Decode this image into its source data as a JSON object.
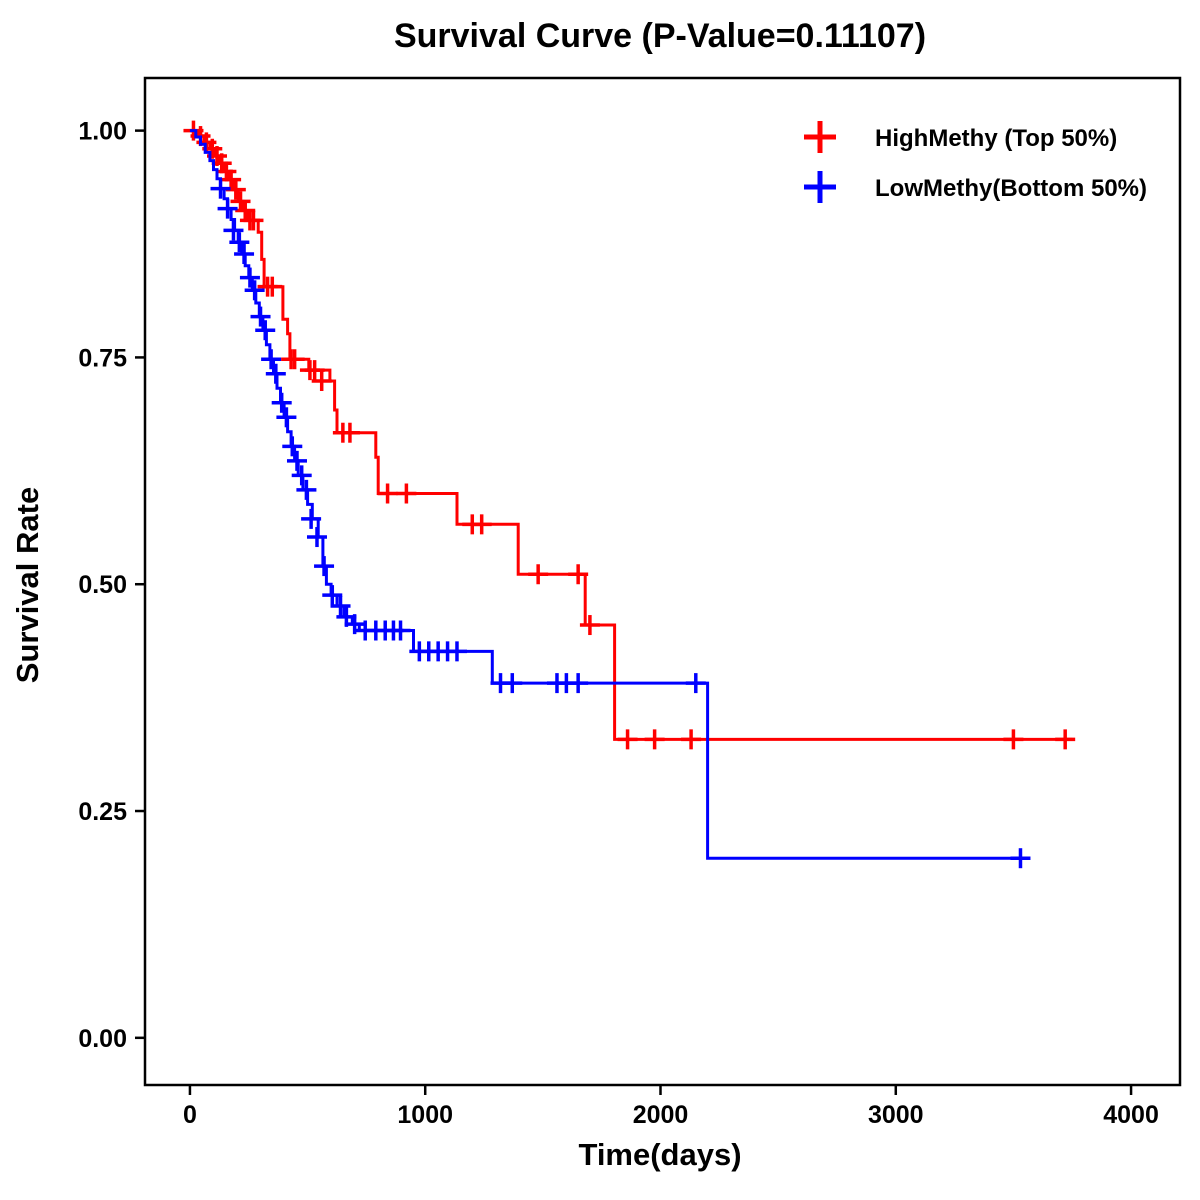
{
  "chart_data": {
    "type": "line",
    "subtype": "kaplan-meier-step",
    "title": "Survival Curve (P-Value=0.11107)",
    "xlabel": "Time(days)",
    "ylabel": "Survival Rate",
    "xlim": [
      -191,
      4208
    ],
    "ylim": [
      -0.052,
      1.058
    ],
    "xticks": [
      0,
      1000,
      2000,
      3000,
      4000
    ],
    "yticks": [
      0.0,
      0.25,
      0.5,
      0.75,
      1.0
    ],
    "grid": false,
    "legend_position": "top-right",
    "series": [
      {
        "name": "HighMethy (Top 50%)",
        "color": "#ff0000",
        "points": [
          [
            0,
            1.0
          ],
          [
            35,
            0.994
          ],
          [
            60,
            0.987
          ],
          [
            85,
            0.98
          ],
          [
            105,
            0.972
          ],
          [
            125,
            0.964
          ],
          [
            145,
            0.955
          ],
          [
            165,
            0.946
          ],
          [
            185,
            0.935
          ],
          [
            205,
            0.922
          ],
          [
            225,
            0.912
          ],
          [
            245,
            0.901
          ],
          [
            290,
            0.888
          ],
          [
            305,
            0.858
          ],
          [
            315,
            0.828
          ],
          [
            395,
            0.792
          ],
          [
            415,
            0.776
          ],
          [
            425,
            0.748
          ],
          [
            505,
            0.736
          ],
          [
            595,
            0.724
          ],
          [
            615,
            0.692
          ],
          [
            625,
            0.667
          ],
          [
            790,
            0.64
          ],
          [
            800,
            0.6
          ],
          [
            1135,
            0.566
          ],
          [
            1395,
            0.511
          ],
          [
            1680,
            0.455
          ],
          [
            1805,
            0.329
          ],
          [
            3750,
            0.329
          ]
        ],
        "censor_marks": [
          [
            15,
            1.0
          ],
          [
            45,
            0.994
          ],
          [
            70,
            0.987
          ],
          [
            95,
            0.98
          ],
          [
            115,
            0.972
          ],
          [
            135,
            0.964
          ],
          [
            155,
            0.955
          ],
          [
            175,
            0.946
          ],
          [
            195,
            0.935
          ],
          [
            215,
            0.922
          ],
          [
            235,
            0.912
          ],
          [
            255,
            0.901
          ],
          [
            270,
            0.901
          ],
          [
            330,
            0.828
          ],
          [
            350,
            0.828
          ],
          [
            430,
            0.748
          ],
          [
            445,
            0.748
          ],
          [
            510,
            0.736
          ],
          [
            530,
            0.736
          ],
          [
            560,
            0.724
          ],
          [
            650,
            0.667
          ],
          [
            680,
            0.667
          ],
          [
            840,
            0.6
          ],
          [
            920,
            0.6
          ],
          [
            1200,
            0.566
          ],
          [
            1240,
            0.566
          ],
          [
            1480,
            0.511
          ],
          [
            1650,
            0.511
          ],
          [
            1700,
            0.455
          ],
          [
            1860,
            0.329
          ],
          [
            1975,
            0.329
          ],
          [
            2130,
            0.329
          ],
          [
            3500,
            0.329
          ],
          [
            3720,
            0.329
          ]
        ]
      },
      {
        "name": "LowMethy(Bottom 50%)",
        "color": "#0000ff",
        "points": [
          [
            0,
            1.0
          ],
          [
            25,
            0.993
          ],
          [
            45,
            0.985
          ],
          [
            65,
            0.976
          ],
          [
            85,
            0.967
          ],
          [
            100,
            0.957
          ],
          [
            115,
            0.947
          ],
          [
            130,
            0.936
          ],
          [
            145,
            0.925
          ],
          [
            160,
            0.914
          ],
          [
            175,
            0.902
          ],
          [
            190,
            0.89
          ],
          [
            205,
            0.877
          ],
          [
            220,
            0.864
          ],
          [
            235,
            0.851
          ],
          [
            250,
            0.838
          ],
          [
            265,
            0.824
          ],
          [
            280,
            0.81
          ],
          [
            295,
            0.795
          ],
          [
            310,
            0.78
          ],
          [
            325,
            0.764
          ],
          [
            340,
            0.748
          ],
          [
            355,
            0.732
          ],
          [
            370,
            0.716
          ],
          [
            385,
            0.7
          ],
          [
            400,
            0.684
          ],
          [
            415,
            0.668
          ],
          [
            430,
            0.652
          ],
          [
            445,
            0.636
          ],
          [
            460,
            0.62
          ],
          [
            480,
            0.604
          ],
          [
            500,
            0.588
          ],
          [
            520,
            0.572
          ],
          [
            545,
            0.552
          ],
          [
            565,
            0.52
          ],
          [
            580,
            0.5
          ],
          [
            600,
            0.488
          ],
          [
            625,
            0.476
          ],
          [
            655,
            0.464
          ],
          [
            690,
            0.456
          ],
          [
            720,
            0.449
          ],
          [
            950,
            0.426
          ],
          [
            1285,
            0.391
          ],
          [
            2200,
            0.198
          ],
          [
            3560,
            0.198
          ]
        ],
        "censor_marks": [
          [
            130,
            0.936
          ],
          [
            160,
            0.914
          ],
          [
            185,
            0.89
          ],
          [
            210,
            0.877
          ],
          [
            230,
            0.864
          ],
          [
            255,
            0.838
          ],
          [
            275,
            0.824
          ],
          [
            300,
            0.795
          ],
          [
            320,
            0.78
          ],
          [
            345,
            0.748
          ],
          [
            365,
            0.732
          ],
          [
            390,
            0.7
          ],
          [
            410,
            0.684
          ],
          [
            435,
            0.652
          ],
          [
            455,
            0.636
          ],
          [
            475,
            0.62
          ],
          [
            495,
            0.604
          ],
          [
            515,
            0.572
          ],
          [
            540,
            0.552
          ],
          [
            570,
            0.52
          ],
          [
            605,
            0.488
          ],
          [
            640,
            0.476
          ],
          [
            665,
            0.464
          ],
          [
            700,
            0.456
          ],
          [
            745,
            0.449
          ],
          [
            790,
            0.449
          ],
          [
            830,
            0.449
          ],
          [
            865,
            0.449
          ],
          [
            895,
            0.449
          ],
          [
            975,
            0.426
          ],
          [
            1015,
            0.426
          ],
          [
            1055,
            0.426
          ],
          [
            1095,
            0.426
          ],
          [
            1135,
            0.426
          ],
          [
            1320,
            0.391
          ],
          [
            1370,
            0.391
          ],
          [
            1560,
            0.391
          ],
          [
            1600,
            0.391
          ],
          [
            1650,
            0.391
          ],
          [
            2150,
            0.391
          ],
          [
            3530,
            0.198
          ]
        ]
      }
    ]
  }
}
